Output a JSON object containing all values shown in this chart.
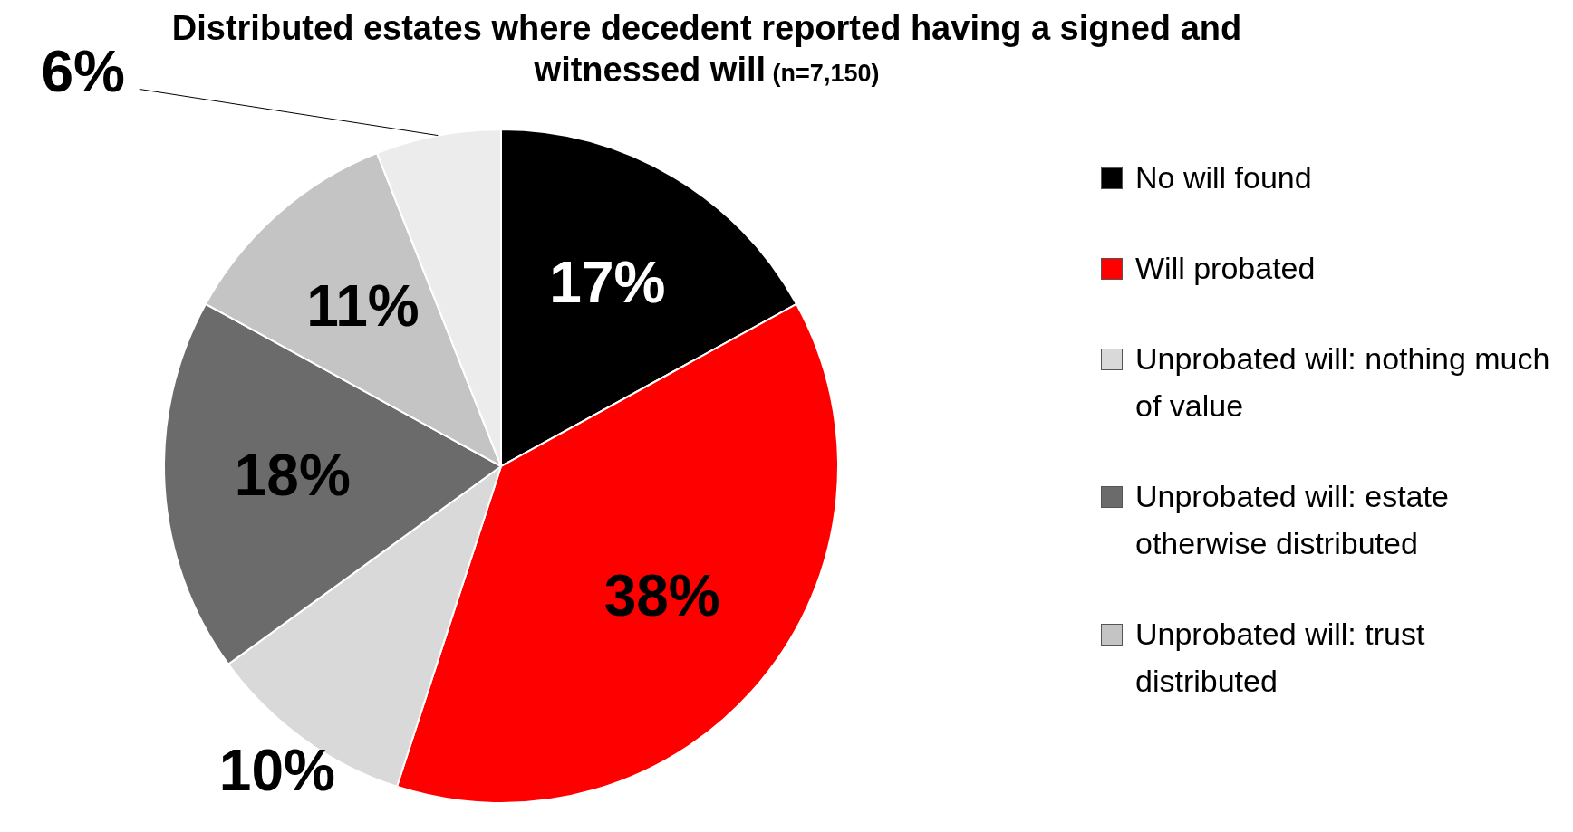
{
  "chart_data": {
    "type": "pie",
    "title": "Distributed estates where decedent reported having a signed and witnessed will",
    "subtitle": "(n=7,150)",
    "categories": [
      "No will found",
      "Will probated",
      "Unprobated will: nothing much of value",
      "Unprobated will: estate otherwise distributed",
      "Unprobated will: trust distributed",
      null
    ],
    "values": [
      17,
      38,
      10,
      18,
      11,
      6
    ],
    "colors": [
      "#000000",
      "#ff0000",
      "#d9d9d9",
      "#6b6b6b",
      "#c4c4c4",
      "#ececec"
    ],
    "value_labels": [
      "17%",
      "38%",
      "10%",
      "18%",
      "11%",
      "6%"
    ],
    "legend": "right"
  }
}
